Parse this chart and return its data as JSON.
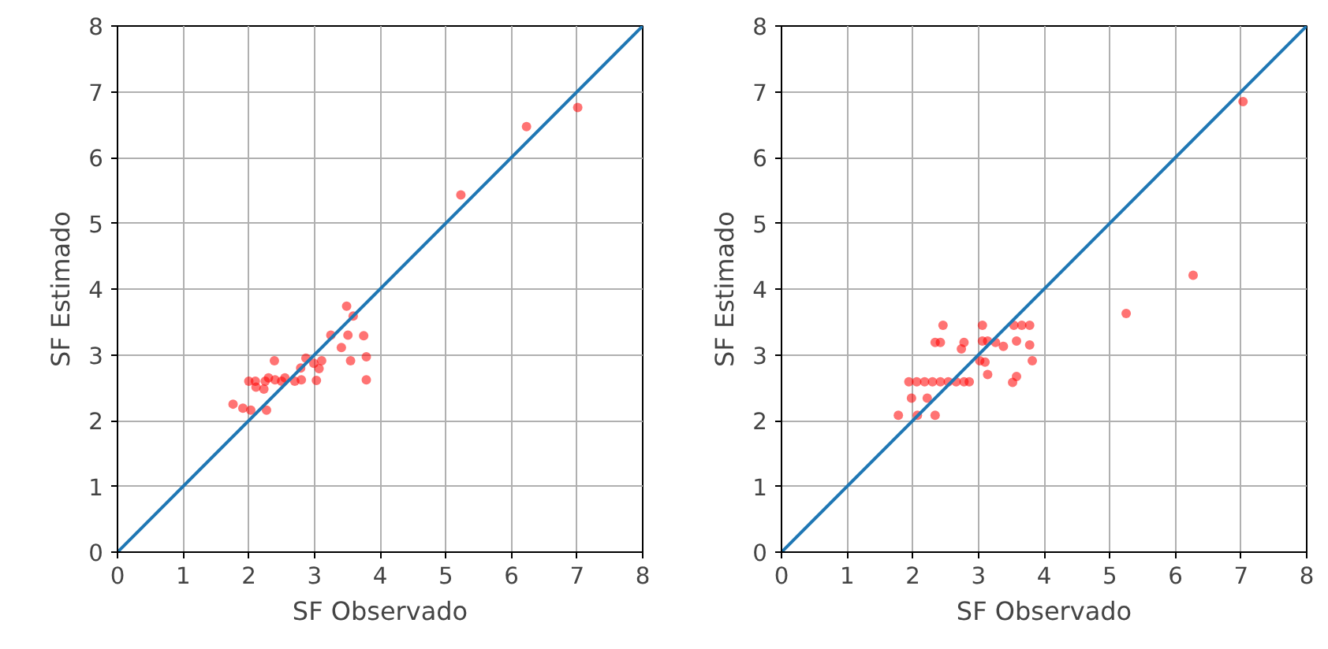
{
  "chart_data": [
    {
      "type": "scatter",
      "xlabel": "SF Observado",
      "ylabel": "SF Estimado",
      "xlim": [
        0,
        8
      ],
      "ylim": [
        0,
        8
      ],
      "xticks": [
        0,
        1,
        2,
        3,
        4,
        5,
        6,
        7,
        8
      ],
      "yticks": [
        0,
        1,
        2,
        3,
        4,
        5,
        6,
        7,
        8
      ],
      "grid": true,
      "series": [
        {
          "color": "#ff0000",
          "marker": "circle",
          "x": [
            3.49,
            3.59,
            3.25,
            3.51,
            3.75,
            3.41,
            3.55,
            3.79,
            3.79,
            3.03,
            2.39,
            2.87,
            2.99,
            3.11,
            3.07,
            2.79,
            2.1,
            2.25,
            2.4,
            2.5,
            2.7,
            2.8,
            2.3,
            2.55,
            2.11,
            2.23,
            1.76,
            1.91,
            2.03,
            2.27,
            2.0,
            5.23,
            6.23,
            7.01
          ],
          "values": [
            3.74,
            3.59,
            3.3,
            3.3,
            3.29,
            3.11,
            2.91,
            2.97,
            2.62,
            2.61,
            2.91,
            2.95,
            2.87,
            2.91,
            2.79,
            2.8,
            2.6,
            2.6,
            2.62,
            2.6,
            2.6,
            2.62,
            2.65,
            2.65,
            2.51,
            2.48,
            2.25,
            2.19,
            2.16,
            2.16,
            2.6,
            5.43,
            6.47,
            6.76
          ]
        },
        {
          "type": "line",
          "color": "#1f77b4",
          "x": [
            0,
            8
          ],
          "values": [
            0,
            8
          ]
        }
      ]
    },
    {
      "type": "scatter",
      "xlabel": "SF Observado",
      "ylabel": "SF Estimado",
      "xlim": [
        0,
        8
      ],
      "ylim": [
        0,
        8
      ],
      "xticks": [
        0,
        1,
        2,
        3,
        4,
        5,
        6,
        7,
        8
      ],
      "yticks": [
        0,
        1,
        2,
        3,
        4,
        5,
        6,
        7,
        8
      ],
      "grid": true,
      "series": [
        {
          "color": "#ff0000",
          "marker": "circle",
          "x": [
            2.46,
            3.06,
            3.54,
            3.66,
            3.78,
            2.34,
            2.42,
            2.78,
            2.74,
            3.06,
            3.14,
            3.26,
            3.38,
            3.58,
            3.78,
            3.02,
            3.1,
            3.14,
            3.82,
            3.58,
            3.52,
            1.94,
            2.06,
            2.18,
            2.3,
            2.42,
            2.54,
            2.66,
            2.78,
            2.86,
            1.98,
            2.22,
            1.78,
            2.07,
            2.34,
            5.25,
            6.27,
            7.03
          ],
          "values": [
            3.45,
            3.45,
            3.45,
            3.45,
            3.45,
            3.19,
            3.19,
            3.19,
            3.09,
            3.21,
            3.21,
            3.19,
            3.13,
            3.21,
            3.15,
            2.91,
            2.89,
            2.7,
            2.91,
            2.67,
            2.58,
            2.59,
            2.59,
            2.59,
            2.59,
            2.59,
            2.59,
            2.59,
            2.59,
            2.59,
            2.34,
            2.34,
            2.08,
            2.08,
            2.08,
            3.63,
            4.21,
            6.85
          ]
        },
        {
          "type": "line",
          "color": "#1f77b4",
          "x": [
            0,
            8
          ],
          "values": [
            0,
            8
          ]
        }
      ]
    }
  ]
}
